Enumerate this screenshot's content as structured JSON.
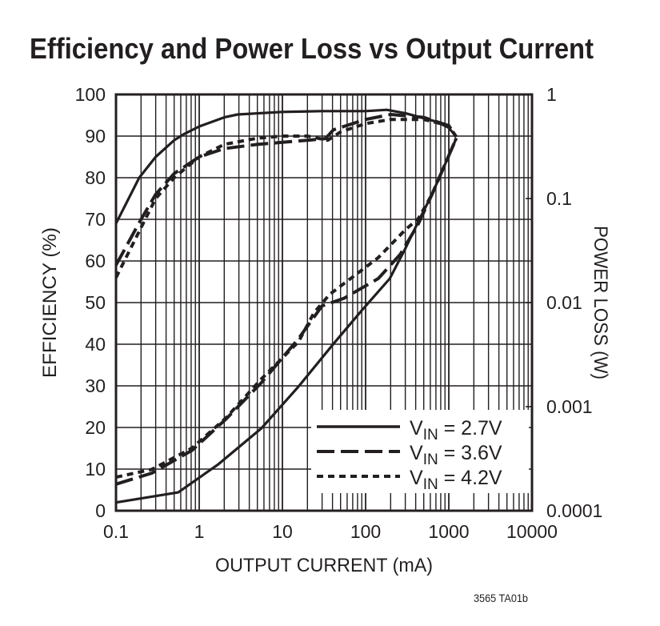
{
  "chart_data": {
    "type": "line",
    "title": "Efficiency and Power Loss vs Output Current",
    "xlabel": "OUTPUT CURRENT (mA)",
    "ylabel": "EFFICIENCY (%)",
    "y2label": "POWER LOSS (W)",
    "footnote": "3565 TA01b",
    "xscale": "log",
    "xlim": [
      0.1,
      10000
    ],
    "ylim": [
      0,
      100
    ],
    "y2scale": "log",
    "y2lim": [
      0.0001,
      1
    ],
    "grid": true,
    "legend_position": "bottom-right",
    "xticks": [
      "0.1",
      "1",
      "10",
      "100",
      "1000",
      "10000"
    ],
    "yticks": [
      "0",
      "10",
      "20",
      "30",
      "40",
      "50",
      "60",
      "70",
      "80",
      "90",
      "100"
    ],
    "y2ticks": [
      "0.0001",
      "0.001",
      "0.01",
      "0.1",
      "1"
    ],
    "series": [
      {
        "name": "VIN = 2.7V",
        "legend": {
          "main": "V",
          "sub": "IN",
          "rest": " = 2.7V"
        },
        "style": "solid",
        "efficiency": [
          [
            0.1,
            69
          ],
          [
            0.19,
            80
          ],
          [
            0.3,
            85
          ],
          [
            0.5,
            89
          ],
          [
            0.66,
            90.5
          ],
          [
            1,
            92.3
          ],
          [
            2,
            94.5
          ],
          [
            2.9,
            95.2
          ],
          [
            10,
            95.8
          ],
          [
            30,
            96
          ],
          [
            100,
            96
          ],
          [
            180,
            96.3
          ],
          [
            300,
            95.5
          ],
          [
            700,
            93.5
          ],
          [
            1000,
            92
          ],
          [
            1230,
            89.8
          ]
        ],
        "power_loss": [
          [
            0.1,
            0.00012
          ],
          [
            0.56,
            0.00015
          ],
          [
            1.7,
            0.00028
          ],
          [
            5.6,
            0.00062
          ],
          [
            15.6,
            0.00156
          ],
          [
            41,
            0.004
          ],
          [
            91,
            0.0085
          ],
          [
            195,
            0.017
          ],
          [
            300,
            0.033
          ],
          [
            430,
            0.06
          ],
          [
            630,
            0.11
          ],
          [
            1230,
            0.38
          ]
        ]
      },
      {
        "name": "VIN = 3.6V",
        "legend": {
          "main": "V",
          "sub": "IN",
          "rest": " = 3.6V"
        },
        "style": "dashed",
        "efficiency": [
          [
            0.1,
            59
          ],
          [
            0.2,
            70
          ],
          [
            0.3,
            76
          ],
          [
            0.5,
            81
          ],
          [
            1,
            85
          ],
          [
            2,
            87
          ],
          [
            5,
            88
          ],
          [
            10,
            88.5
          ],
          [
            20,
            89
          ],
          [
            33,
            89.4
          ],
          [
            41,
            91.5
          ],
          [
            70,
            93
          ],
          [
            100,
            94
          ],
          [
            200,
            95.2
          ],
          [
            500,
            94.5
          ],
          [
            1000,
            92.5
          ],
          [
            1230,
            89.8
          ]
        ],
        "power_loss": [
          [
            0.1,
            0.00018
          ],
          [
            0.27,
            0.00023
          ],
          [
            0.82,
            0.00038
          ],
          [
            2.1,
            0.00076
          ],
          [
            5.6,
            0.0017
          ],
          [
            15.6,
            0.0045
          ],
          [
            30,
            0.0093
          ],
          [
            55,
            0.011
          ],
          [
            142,
            0.017
          ],
          [
            260,
            0.029
          ],
          [
            430,
            0.057
          ],
          [
            630,
            0.11
          ],
          [
            1230,
            0.38
          ]
        ]
      },
      {
        "name": "VIN = 4.2V",
        "legend": {
          "main": "V",
          "sub": "IN",
          "rest": " = 4.2V"
        },
        "style": "dotted",
        "efficiency": [
          [
            0.1,
            56
          ],
          [
            0.2,
            68
          ],
          [
            0.3,
            75
          ],
          [
            0.5,
            80
          ],
          [
            1,
            85
          ],
          [
            2,
            88
          ],
          [
            5,
            89.5
          ],
          [
            10,
            90
          ],
          [
            20,
            90
          ],
          [
            35,
            89
          ],
          [
            50,
            91
          ],
          [
            100,
            93
          ],
          [
            200,
            94
          ],
          [
            500,
            94
          ],
          [
            1000,
            92.5
          ],
          [
            1230,
            89.8
          ]
        ],
        "power_loss": [
          [
            0.1,
            0.00021
          ],
          [
            0.27,
            0.00025
          ],
          [
            0.82,
            0.0004
          ],
          [
            2.1,
            0.00078
          ],
          [
            5.6,
            0.00185
          ],
          [
            15.6,
            0.0042
          ],
          [
            24,
            0.008
          ],
          [
            37,
            0.012
          ],
          [
            142,
            0.027
          ],
          [
            300,
            0.05
          ],
          [
            430,
            0.064
          ],
          [
            630,
            0.11
          ],
          [
            1230,
            0.38
          ]
        ]
      }
    ]
  }
}
